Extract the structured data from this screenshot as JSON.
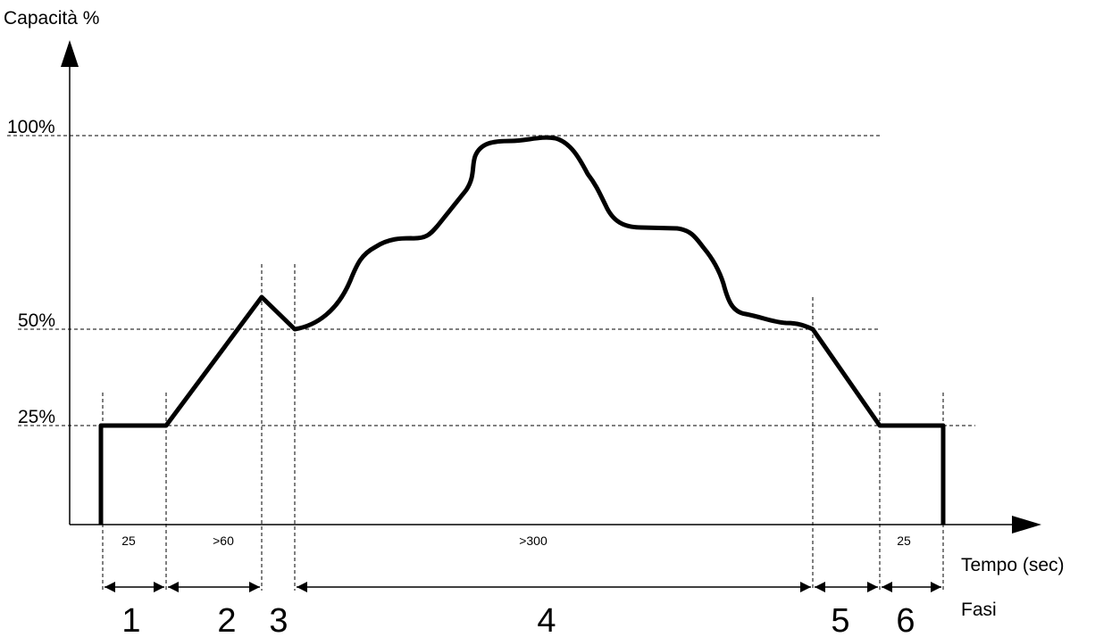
{
  "chart_data": {
    "type": "line",
    "ylabel": "Capacità %",
    "xlabel": "Tempo (sec)",
    "phase_row_label": "Fasi",
    "y_ticks": [
      {
        "value": 100,
        "label": "100%"
      },
      {
        "value": 50,
        "label": "50%"
      },
      {
        "value": 25,
        "label": "25%"
      }
    ],
    "phases": [
      {
        "number": "1",
        "duration_label": "25"
      },
      {
        "number": "2",
        "duration_label": ">60"
      },
      {
        "number": "3",
        "duration_label": ""
      },
      {
        "number": "4",
        "duration_label": ">300"
      },
      {
        "number": "5",
        "duration_label": ""
      },
      {
        "number": "6",
        "duration_label": "25"
      }
    ]
  }
}
